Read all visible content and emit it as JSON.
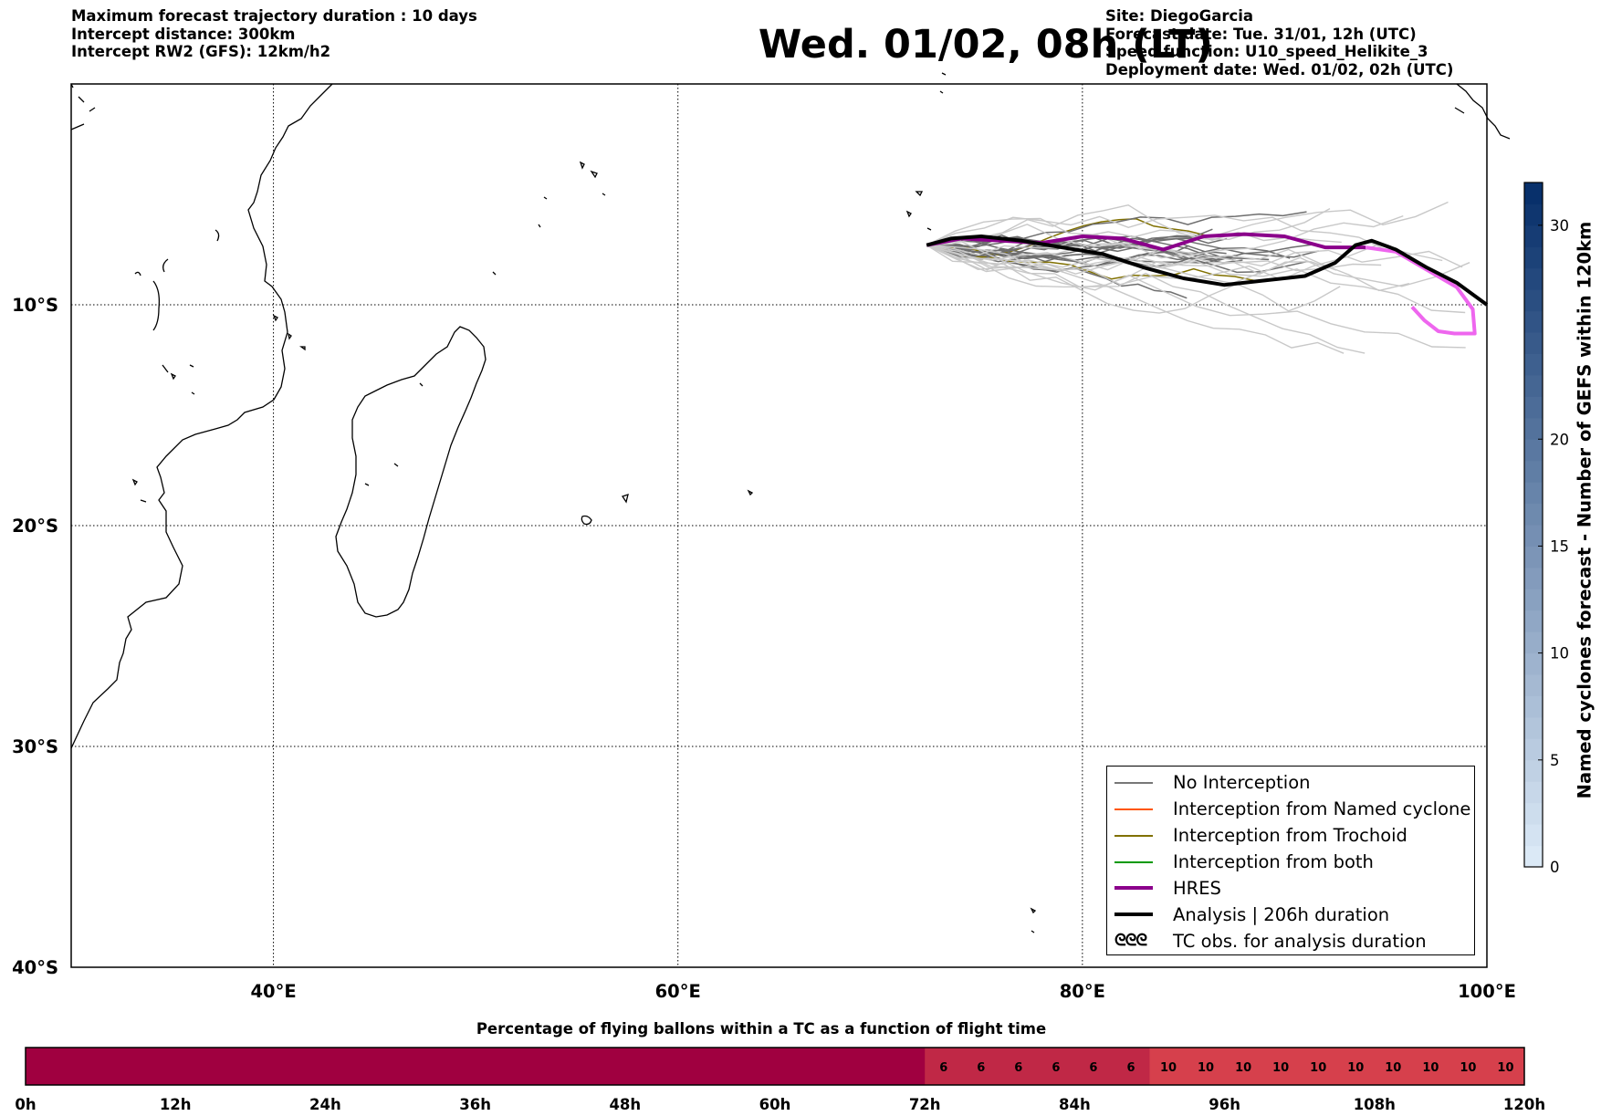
{
  "header": {
    "left": [
      "Maximum forecast trajectory duration : 10 days",
      "Intercept distance: 300km",
      "Intercept RW2 (GFS):  12km/h2"
    ],
    "title": "Wed. 01/02, 08h (LT)",
    "right": [
      "Site: DiegoGarcia",
      "Forecast date: Tue. 31/01, 12h (UTC)",
      "Speed function: U10_speed_Helikite_3",
      "Deployment date: Wed. 01/02, 02h (UTC)"
    ]
  },
  "map": {
    "lon_range": [
      30,
      100
    ],
    "lat_range": [
      -40,
      0
    ],
    "xticks": [
      {
        "value": 40,
        "label": "40°E"
      },
      {
        "value": 60,
        "label": "60°E"
      },
      {
        "value": 80,
        "label": "80°E"
      },
      {
        "value": 100,
        "label": "100°E"
      }
    ],
    "yticks": [
      {
        "value": -10,
        "label": "10°S"
      },
      {
        "value": -20,
        "label": "20°S"
      },
      {
        "value": -30,
        "label": "30°S"
      },
      {
        "value": -40,
        "label": "40°S"
      }
    ],
    "grid": true
  },
  "legend": {
    "placement": "lower-right",
    "items": [
      {
        "label": "No Interception",
        "color": "#777777",
        "style": "thin"
      },
      {
        "label": "Interception from Named cyclone",
        "color": "#ff5500",
        "style": "thin"
      },
      {
        "label": "Interception from Trochoid",
        "color": "#807000",
        "style": "thin"
      },
      {
        "label": "Interception from both",
        "color": "#009900",
        "style": "thin"
      },
      {
        "label": "HRES",
        "color": "#8b008b",
        "style": "thick"
      },
      {
        "label": "Analysis | 206h duration",
        "color": "#000000",
        "style": "thick"
      },
      {
        "label": "TC obs. for analysis duration",
        "color": "#000000",
        "style": "symbol"
      }
    ]
  },
  "colorbar": {
    "label": "Named cyclones forecast - Number of GEFS within 120km",
    "ticks": [
      0,
      5,
      10,
      15,
      20,
      30
    ],
    "range": [
      0,
      32
    ],
    "color_low": "#dbe9f6",
    "color_high": "#08306b"
  },
  "chart_data": {
    "type": "line",
    "title": "Wed. 01/02, 08h (LT)",
    "xlabel": "",
    "ylabel": "",
    "xlim": [
      30,
      100
    ],
    "ylim": [
      -40,
      0
    ],
    "series": [
      {
        "name": "HRES",
        "color": "#8b008b",
        "points": [
          [
            72.3,
            -7.3
          ],
          [
            74,
            -7.0
          ],
          [
            76,
            -7.1
          ],
          [
            78,
            -7.2
          ],
          [
            80,
            -6.9
          ],
          [
            82,
            -7.0
          ],
          [
            84,
            -7.5
          ],
          [
            86,
            -6.9
          ],
          [
            88,
            -6.8
          ],
          [
            90,
            -6.9
          ],
          [
            92,
            -7.4
          ],
          [
            94,
            -7.4
          ]
        ]
      },
      {
        "name": "HRES",
        "color": "#ee66ee",
        "points": [
          [
            94,
            -7.4
          ],
          [
            95.5,
            -7.6
          ],
          [
            97,
            -8.4
          ],
          [
            98.5,
            -9.2
          ],
          [
            99.3,
            -10.2
          ],
          [
            99.4,
            -11.3
          ],
          [
            98.4,
            -11.3
          ],
          [
            97.6,
            -11.2
          ],
          [
            96.9,
            -10.7
          ],
          [
            96.3,
            -10.1
          ]
        ]
      },
      {
        "name": "Analysis | 206h duration",
        "color": "#000000",
        "points": [
          [
            72.3,
            -7.3
          ],
          [
            73.5,
            -7.0
          ],
          [
            75,
            -6.9
          ],
          [
            77,
            -7.1
          ],
          [
            79,
            -7.4
          ],
          [
            81,
            -7.7
          ],
          [
            83,
            -8.3
          ],
          [
            85,
            -8.8
          ],
          [
            87,
            -9.1
          ],
          [
            89,
            -8.9
          ],
          [
            91,
            -8.7
          ],
          [
            92.5,
            -8.1
          ],
          [
            93.5,
            -7.3
          ],
          [
            94.3,
            -7.1
          ],
          [
            95.5,
            -7.5
          ],
          [
            97,
            -8.3
          ],
          [
            98.5,
            -9.0
          ],
          [
            100,
            -10.0
          ]
        ]
      }
    ]
  },
  "timeline": {
    "title": "Percentage of flying ballons within a TC as a function of flight time",
    "labels": [
      "0h",
      "12h",
      "24h",
      "36h",
      "48h",
      "60h",
      "72h",
      "84h",
      "96h",
      "108h",
      "120h"
    ],
    "cells": [
      0,
      0,
      0,
      0,
      0,
      0,
      0,
      0,
      0,
      0,
      0,
      0,
      0,
      0,
      0,
      0,
      0,
      0,
      0,
      0,
      0,
      0,
      0,
      0,
      6,
      6,
      6,
      6,
      6,
      6,
      10,
      10,
      10,
      10,
      10,
      10,
      10,
      10,
      10,
      10
    ],
    "color_0": "#a00040",
    "color_6": "#c02846",
    "color_10": "#d6404c"
  }
}
